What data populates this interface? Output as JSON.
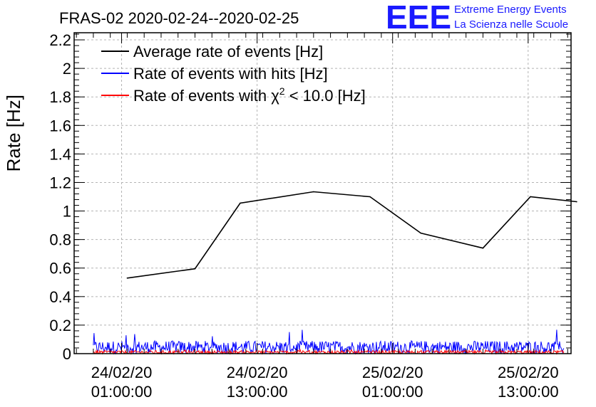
{
  "chart_data": {
    "type": "line",
    "title": "FRAS-02 2020-02-24--2020-02-25",
    "ylabel": "Rate [Hz]",
    "xlabel": "",
    "ylim": [
      0,
      2.25
    ],
    "yticks": [
      0,
      0.2,
      0.4,
      0.6,
      0.8,
      1,
      1.2,
      1.4,
      1.6,
      1.8,
      2,
      2.2
    ],
    "ytick_labels": [
      "0",
      "0.2",
      "0.4",
      "0.6",
      "0.8",
      "1",
      "1.2",
      "1.4",
      "1.6",
      "1.8",
      "2",
      "2.2"
    ],
    "x_unit": "hours since 2020-02-24 00:00",
    "xlim": [
      -3.2,
      40.8
    ],
    "xticks": [
      {
        "x": 1,
        "line1": "24/02/20",
        "line2": "01:00:00"
      },
      {
        "x": 13,
        "line1": "24/02/20",
        "line2": "13:00:00"
      },
      {
        "x": 25,
        "line1": "25/02/20",
        "line2": "01:00:00"
      },
      {
        "x": 37,
        "line1": "25/02/20",
        "line2": "13:00:00"
      }
    ],
    "grid": true,
    "legend_position": "top-left",
    "series": [
      {
        "name": "Average rate of events [Hz]",
        "color": "#000000",
        "x": [
          1.5,
          7.5,
          11.5,
          18.0,
          23.0,
          27.5,
          33.0,
          37.2,
          41.3
        ],
        "values": [
          0.53,
          0.595,
          1.055,
          1.135,
          1.1,
          0.845,
          0.74,
          1.1,
          1.065
        ]
      },
      {
        "name": "Rate of events with hits [Hz]",
        "color": "#0000ff",
        "noise": {
          "x_start": -1.5,
          "x_end": 40.2,
          "baseline": 0.045,
          "amplitude": 0.045,
          "max": 0.17
        }
      },
      {
        "name": "Rate of events with χ² < 10.0 [Hz]",
        "color": "#ff0000",
        "noise": {
          "x_start": -1.5,
          "x_end": 40.2,
          "baseline": 0.01,
          "amplitude": 0.012,
          "max": 0.03
        }
      }
    ],
    "legend": {
      "entry_1": "Average rate of events [Hz]",
      "entry_2": "Rate of events with hits [Hz]",
      "entry_3_prefix": "Rate of events with ",
      "entry_3_symbol": "χ",
      "entry_3_sup": "2",
      "entry_3_suffix": " < 10.0 [Hz]"
    }
  },
  "logo": {
    "mark": "EEE",
    "line1": "Extreme Energy Events",
    "line2": "La Scienza nelle Scuole",
    "color": "#1a1aff"
  }
}
